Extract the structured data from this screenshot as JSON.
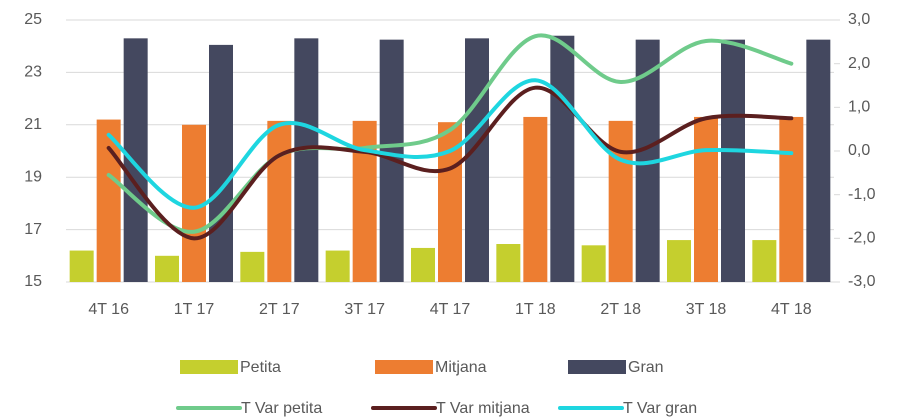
{
  "chart_data": {
    "type": "bar_line",
    "categories": [
      "4T 16",
      "1T 17",
      "2T 17",
      "3T 17",
      "4T 17",
      "1T 18",
      "2T 18",
      "3T 18",
      "4T 18"
    ],
    "series": [
      {
        "name": "Petita",
        "color": "#c5cf2e",
        "type": "bar",
        "values": [
          16.2,
          16.0,
          16.15,
          16.2,
          16.3,
          16.45,
          16.4,
          16.6,
          16.6
        ]
      },
      {
        "name": "Mitjana",
        "color": "#ed7d31",
        "type": "bar",
        "values": [
          21.2,
          21.0,
          21.15,
          21.15,
          21.1,
          21.3,
          21.15,
          21.3,
          21.3
        ]
      },
      {
        "name": "Gran",
        "color": "#44485f",
        "type": "bar",
        "values": [
          24.3,
          24.05,
          24.3,
          24.25,
          24.3,
          24.4,
          24.25,
          24.25,
          24.25
        ]
      },
      {
        "name": "T Var petita",
        "color": "#6fcb8b",
        "type": "line",
        "axis": "y2",
        "values": [
          -0.55,
          -1.85,
          -0.1,
          0.07,
          0.48,
          2.63,
          1.58,
          2.52,
          2.0
        ]
      },
      {
        "name": "T Var mitjana",
        "color": "#5b1f1f",
        "type": "line",
        "axis": "y2",
        "values": [
          0.07,
          -2.0,
          -0.1,
          -0.02,
          -0.4,
          1.45,
          -0.02,
          0.75,
          0.75
        ]
      },
      {
        "name": "T Var gran",
        "color": "#1ed6e0",
        "type": "line",
        "axis": "y2",
        "values": [
          0.37,
          -1.3,
          0.6,
          0.02,
          0.0,
          1.62,
          -0.2,
          0.02,
          -0.05
        ]
      }
    ],
    "ylim": [
      15,
      25
    ],
    "yticks": [
      15,
      17,
      19,
      21,
      23,
      25
    ],
    "y2lim": [
      -3,
      3
    ],
    "y2ticks": [
      {
        "value": -3,
        "label": "-3,0"
      },
      {
        "value": -2,
        "label": "-2,0"
      },
      {
        "value": -1,
        "label": "-1,0"
      },
      {
        "value": 0,
        "label": "0,0"
      },
      {
        "value": 1,
        "label": "1,0"
      },
      {
        "value": 2,
        "label": "2,0"
      },
      {
        "value": 3,
        "label": "3,0"
      }
    ],
    "grid": true,
    "legend": "bottom"
  }
}
